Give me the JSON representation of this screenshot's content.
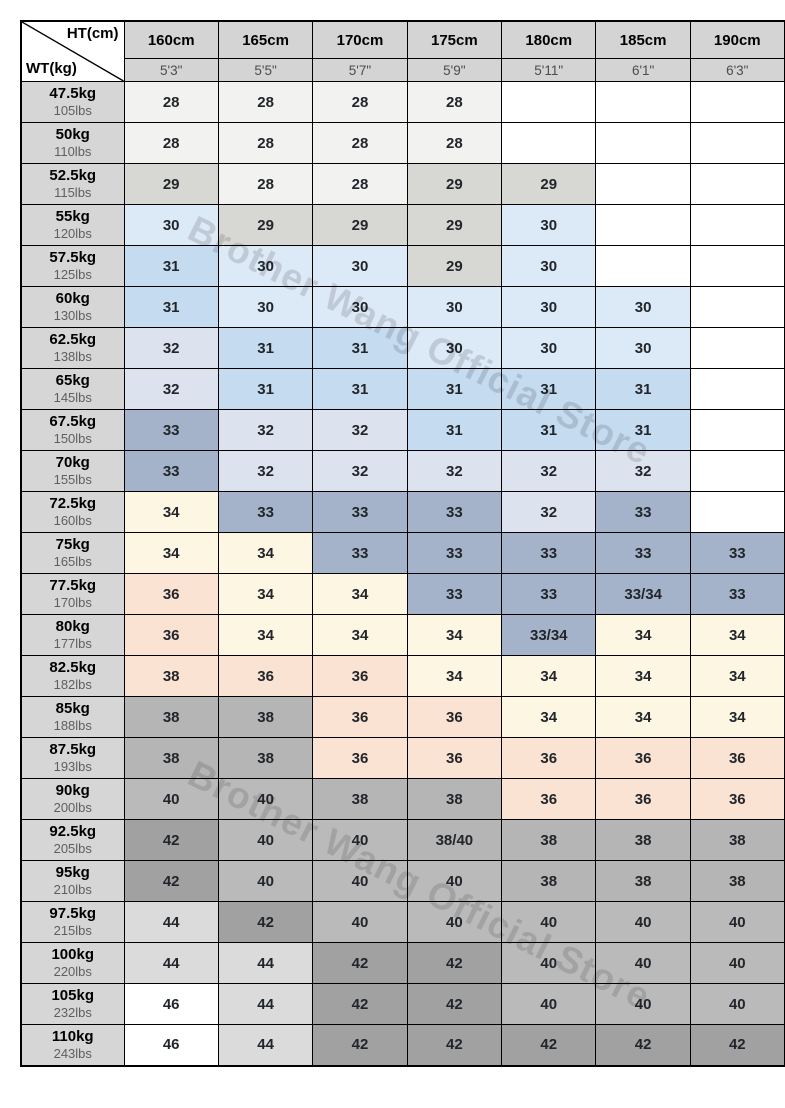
{
  "watermark": {
    "text": "Brother Wang Official Store",
    "color": "rgba(0,0,0,0.13)"
  },
  "corner": {
    "height_label": "HT(cm)",
    "weight_label": "WT(kg)"
  },
  "palette": {
    "empty": "#ffffff",
    "offwhite": "#f2f2f1",
    "lightgray": "#d7d7d3",
    "paleblue": "#dce9f6",
    "blue": "#c5dbf0",
    "palesteel": "#dce3ee",
    "steel": "#a4b3c9",
    "cream": "#fdf6e2",
    "pink": "#fbe3d3",
    "gray38": "#b5b5b5",
    "gray40": "#bababa",
    "gray42": "#a1a1a1",
    "gray44": "#dbdbdb",
    "white46": "#ffffff"
  },
  "chart_data": {
    "type": "table",
    "columns": [
      {
        "cm": "160cm",
        "ft": "5'3\""
      },
      {
        "cm": "165cm",
        "ft": "5'5\""
      },
      {
        "cm": "170cm",
        "ft": "5'7\""
      },
      {
        "cm": "175cm",
        "ft": "5'9\""
      },
      {
        "cm": "180cm",
        "ft": "5'11\""
      },
      {
        "cm": "185cm",
        "ft": "6'1\""
      },
      {
        "cm": "190cm",
        "ft": "6'3\""
      }
    ],
    "rows": [
      {
        "kg": "47.5kg",
        "lbs": "105lbs",
        "sizes": [
          "28",
          "28",
          "28",
          "28",
          "",
          "",
          ""
        ],
        "colors": [
          "offwhite",
          "offwhite",
          "offwhite",
          "offwhite",
          "empty",
          "empty",
          "empty"
        ]
      },
      {
        "kg": "50kg",
        "lbs": "110lbs",
        "sizes": [
          "28",
          "28",
          "28",
          "28",
          "",
          "",
          ""
        ],
        "colors": [
          "offwhite",
          "offwhite",
          "offwhite",
          "offwhite",
          "empty",
          "empty",
          "empty"
        ]
      },
      {
        "kg": "52.5kg",
        "lbs": "115lbs",
        "sizes": [
          "29",
          "28",
          "28",
          "29",
          "29",
          "",
          ""
        ],
        "colors": [
          "lightgray",
          "offwhite",
          "offwhite",
          "lightgray",
          "lightgray",
          "empty",
          "empty"
        ]
      },
      {
        "kg": "55kg",
        "lbs": "120lbs",
        "sizes": [
          "30",
          "29",
          "29",
          "29",
          "30",
          "",
          ""
        ],
        "colors": [
          "paleblue",
          "lightgray",
          "lightgray",
          "lightgray",
          "paleblue",
          "empty",
          "empty"
        ]
      },
      {
        "kg": "57.5kg",
        "lbs": "125lbs",
        "sizes": [
          "31",
          "30",
          "30",
          "29",
          "30",
          "",
          ""
        ],
        "colors": [
          "blue",
          "paleblue",
          "paleblue",
          "lightgray",
          "paleblue",
          "empty",
          "empty"
        ]
      },
      {
        "kg": "60kg",
        "lbs": "130lbs",
        "sizes": [
          "31",
          "30",
          "30",
          "30",
          "30",
          "30",
          ""
        ],
        "colors": [
          "blue",
          "paleblue",
          "paleblue",
          "paleblue",
          "paleblue",
          "paleblue",
          "empty"
        ]
      },
      {
        "kg": "62.5kg",
        "lbs": "138lbs",
        "sizes": [
          "32",
          "31",
          "31",
          "30",
          "30",
          "30",
          ""
        ],
        "colors": [
          "palesteel",
          "blue",
          "blue",
          "paleblue",
          "paleblue",
          "paleblue",
          "empty"
        ]
      },
      {
        "kg": "65kg",
        "lbs": "145lbs",
        "sizes": [
          "32",
          "31",
          "31",
          "31",
          "31",
          "31",
          ""
        ],
        "colors": [
          "palesteel",
          "blue",
          "blue",
          "blue",
          "blue",
          "blue",
          "empty"
        ]
      },
      {
        "kg": "67.5kg",
        "lbs": "150lbs",
        "sizes": [
          "33",
          "32",
          "32",
          "31",
          "31",
          "31",
          ""
        ],
        "colors": [
          "steel",
          "palesteel",
          "palesteel",
          "blue",
          "blue",
          "blue",
          "empty"
        ]
      },
      {
        "kg": "70kg",
        "lbs": "155lbs",
        "sizes": [
          "33",
          "32",
          "32",
          "32",
          "32",
          "32",
          ""
        ],
        "colors": [
          "steel",
          "palesteel",
          "palesteel",
          "palesteel",
          "palesteel",
          "palesteel",
          "empty"
        ]
      },
      {
        "kg": "72.5kg",
        "lbs": "160lbs",
        "sizes": [
          "34",
          "33",
          "33",
          "33",
          "32",
          "33",
          ""
        ],
        "colors": [
          "cream",
          "steel",
          "steel",
          "steel",
          "palesteel",
          "steel",
          "empty"
        ]
      },
      {
        "kg": "75kg",
        "lbs": "165lbs",
        "sizes": [
          "34",
          "34",
          "33",
          "33",
          "33",
          "33",
          "33"
        ],
        "colors": [
          "cream",
          "cream",
          "steel",
          "steel",
          "steel",
          "steel",
          "steel"
        ]
      },
      {
        "kg": "77.5kg",
        "lbs": "170lbs",
        "sizes": [
          "36",
          "34",
          "34",
          "33",
          "33",
          "33/34",
          "33"
        ],
        "colors": [
          "pink",
          "cream",
          "cream",
          "steel",
          "steel",
          "steel",
          "steel"
        ]
      },
      {
        "kg": "80kg",
        "lbs": "177lbs",
        "sizes": [
          "36",
          "34",
          "34",
          "34",
          "33/34",
          "34",
          "34"
        ],
        "colors": [
          "pink",
          "cream",
          "cream",
          "cream",
          "steel",
          "cream",
          "cream"
        ]
      },
      {
        "kg": "82.5kg",
        "lbs": "182lbs",
        "sizes": [
          "38",
          "36",
          "36",
          "34",
          "34",
          "34",
          "34"
        ],
        "colors": [
          "pink",
          "pink",
          "pink",
          "cream",
          "cream",
          "cream",
          "cream"
        ]
      },
      {
        "kg": "85kg",
        "lbs": "188lbs",
        "sizes": [
          "38",
          "38",
          "36",
          "36",
          "34",
          "34",
          "34"
        ],
        "colors": [
          "gray38",
          "gray38",
          "pink",
          "pink",
          "cream",
          "cream",
          "cream"
        ]
      },
      {
        "kg": "87.5kg",
        "lbs": "193lbs",
        "sizes": [
          "38",
          "38",
          "36",
          "36",
          "36",
          "36",
          "36"
        ],
        "colors": [
          "gray38",
          "gray38",
          "pink",
          "pink",
          "pink",
          "pink",
          "pink"
        ]
      },
      {
        "kg": "90kg",
        "lbs": "200lbs",
        "sizes": [
          "40",
          "40",
          "38",
          "38",
          "36",
          "36",
          "36"
        ],
        "colors": [
          "gray40",
          "gray40",
          "gray38",
          "gray38",
          "pink",
          "pink",
          "pink"
        ]
      },
      {
        "kg": "92.5kg",
        "lbs": "205lbs",
        "sizes": [
          "42",
          "40",
          "40",
          "38/40",
          "38",
          "38",
          "38"
        ],
        "colors": [
          "gray42",
          "gray40",
          "gray40",
          "gray38",
          "gray38",
          "gray38",
          "gray38"
        ]
      },
      {
        "kg": "95kg",
        "lbs": "210lbs",
        "sizes": [
          "42",
          "40",
          "40",
          "40",
          "38",
          "38",
          "38"
        ],
        "colors": [
          "gray42",
          "gray40",
          "gray40",
          "gray40",
          "gray38",
          "gray38",
          "gray38"
        ]
      },
      {
        "kg": "97.5kg",
        "lbs": "215lbs",
        "sizes": [
          "44",
          "42",
          "40",
          "40",
          "40",
          "40",
          "40"
        ],
        "colors": [
          "gray44",
          "gray42",
          "gray40",
          "gray40",
          "gray40",
          "gray40",
          "gray40"
        ]
      },
      {
        "kg": "100kg",
        "lbs": "220lbs",
        "sizes": [
          "44",
          "44",
          "42",
          "42",
          "40",
          "40",
          "40"
        ],
        "colors": [
          "gray44",
          "gray44",
          "gray42",
          "gray42",
          "gray40",
          "gray40",
          "gray40"
        ]
      },
      {
        "kg": "105kg",
        "lbs": "232lbs",
        "sizes": [
          "46",
          "44",
          "42",
          "42",
          "40",
          "40",
          "40"
        ],
        "colors": [
          "white46",
          "gray44",
          "gray42",
          "gray42",
          "gray40",
          "gray40",
          "gray40"
        ]
      },
      {
        "kg": "110kg",
        "lbs": "243lbs",
        "sizes": [
          "46",
          "44",
          "42",
          "42",
          "42",
          "42",
          "42"
        ],
        "colors": [
          "white46",
          "gray44",
          "gray42",
          "gray42",
          "gray42",
          "gray42",
          "gray42"
        ]
      }
    ]
  }
}
